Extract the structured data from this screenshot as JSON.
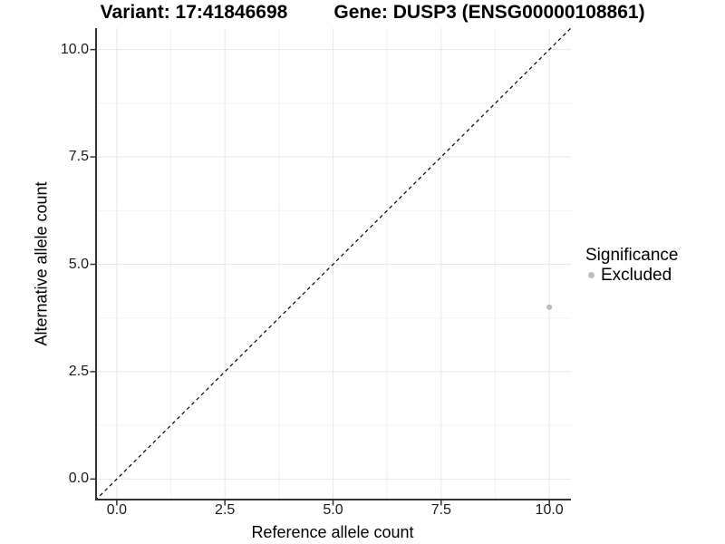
{
  "titles": {
    "variant": "Variant: 17:41846698",
    "gene": "Gene: DUSP3 (ENSG00000108861)"
  },
  "axes": {
    "x_label": "Reference allele count",
    "y_label": "Alternative allele count"
  },
  "legend": {
    "title": "Significance",
    "items": [
      {
        "label": "Excluded",
        "color": "#bdbdbd",
        "shape": "circle"
      }
    ]
  },
  "colors": {
    "background": "#ffffff",
    "grid_major": "#e7e7e7",
    "grid_minor": "#f2f2f2",
    "axis_line": "#333333",
    "tick_mark": "#333333",
    "point": "#bdbdbd",
    "reference_line": "#000000"
  },
  "chart_data": {
    "type": "scatter",
    "title": "Variant: 17:41846698 | Gene: DUSP3 (ENSG00000108861)",
    "xlabel": "Reference allele count",
    "ylabel": "Alternative allele count",
    "xlim": [
      -0.5,
      10.5
    ],
    "ylim": [
      -0.5,
      10.5
    ],
    "xticks": [
      0,
      2.5,
      5,
      7.5,
      10
    ],
    "xtick_labels": [
      "0.0",
      "2.5",
      "5.0",
      "7.5",
      "10.0"
    ],
    "yticks": [
      0,
      2.5,
      5,
      7.5,
      10
    ],
    "ytick_labels": [
      "0.0",
      "2.5",
      "5.0",
      "7.5",
      "10.0"
    ],
    "x_minor_ticks": [
      1.25,
      3.75,
      6.25,
      8.75
    ],
    "y_minor_ticks": [
      1.25,
      3.75,
      6.25,
      8.75
    ],
    "grid": true,
    "legend_position": "right",
    "series": [
      {
        "name": "Excluded",
        "color": "#bdbdbd",
        "marker": "circle",
        "points": [
          {
            "x": 10,
            "y": 4
          }
        ]
      }
    ],
    "reference_line": {
      "slope": 1,
      "intercept": 0,
      "style": "dashed",
      "color": "#000000"
    }
  }
}
